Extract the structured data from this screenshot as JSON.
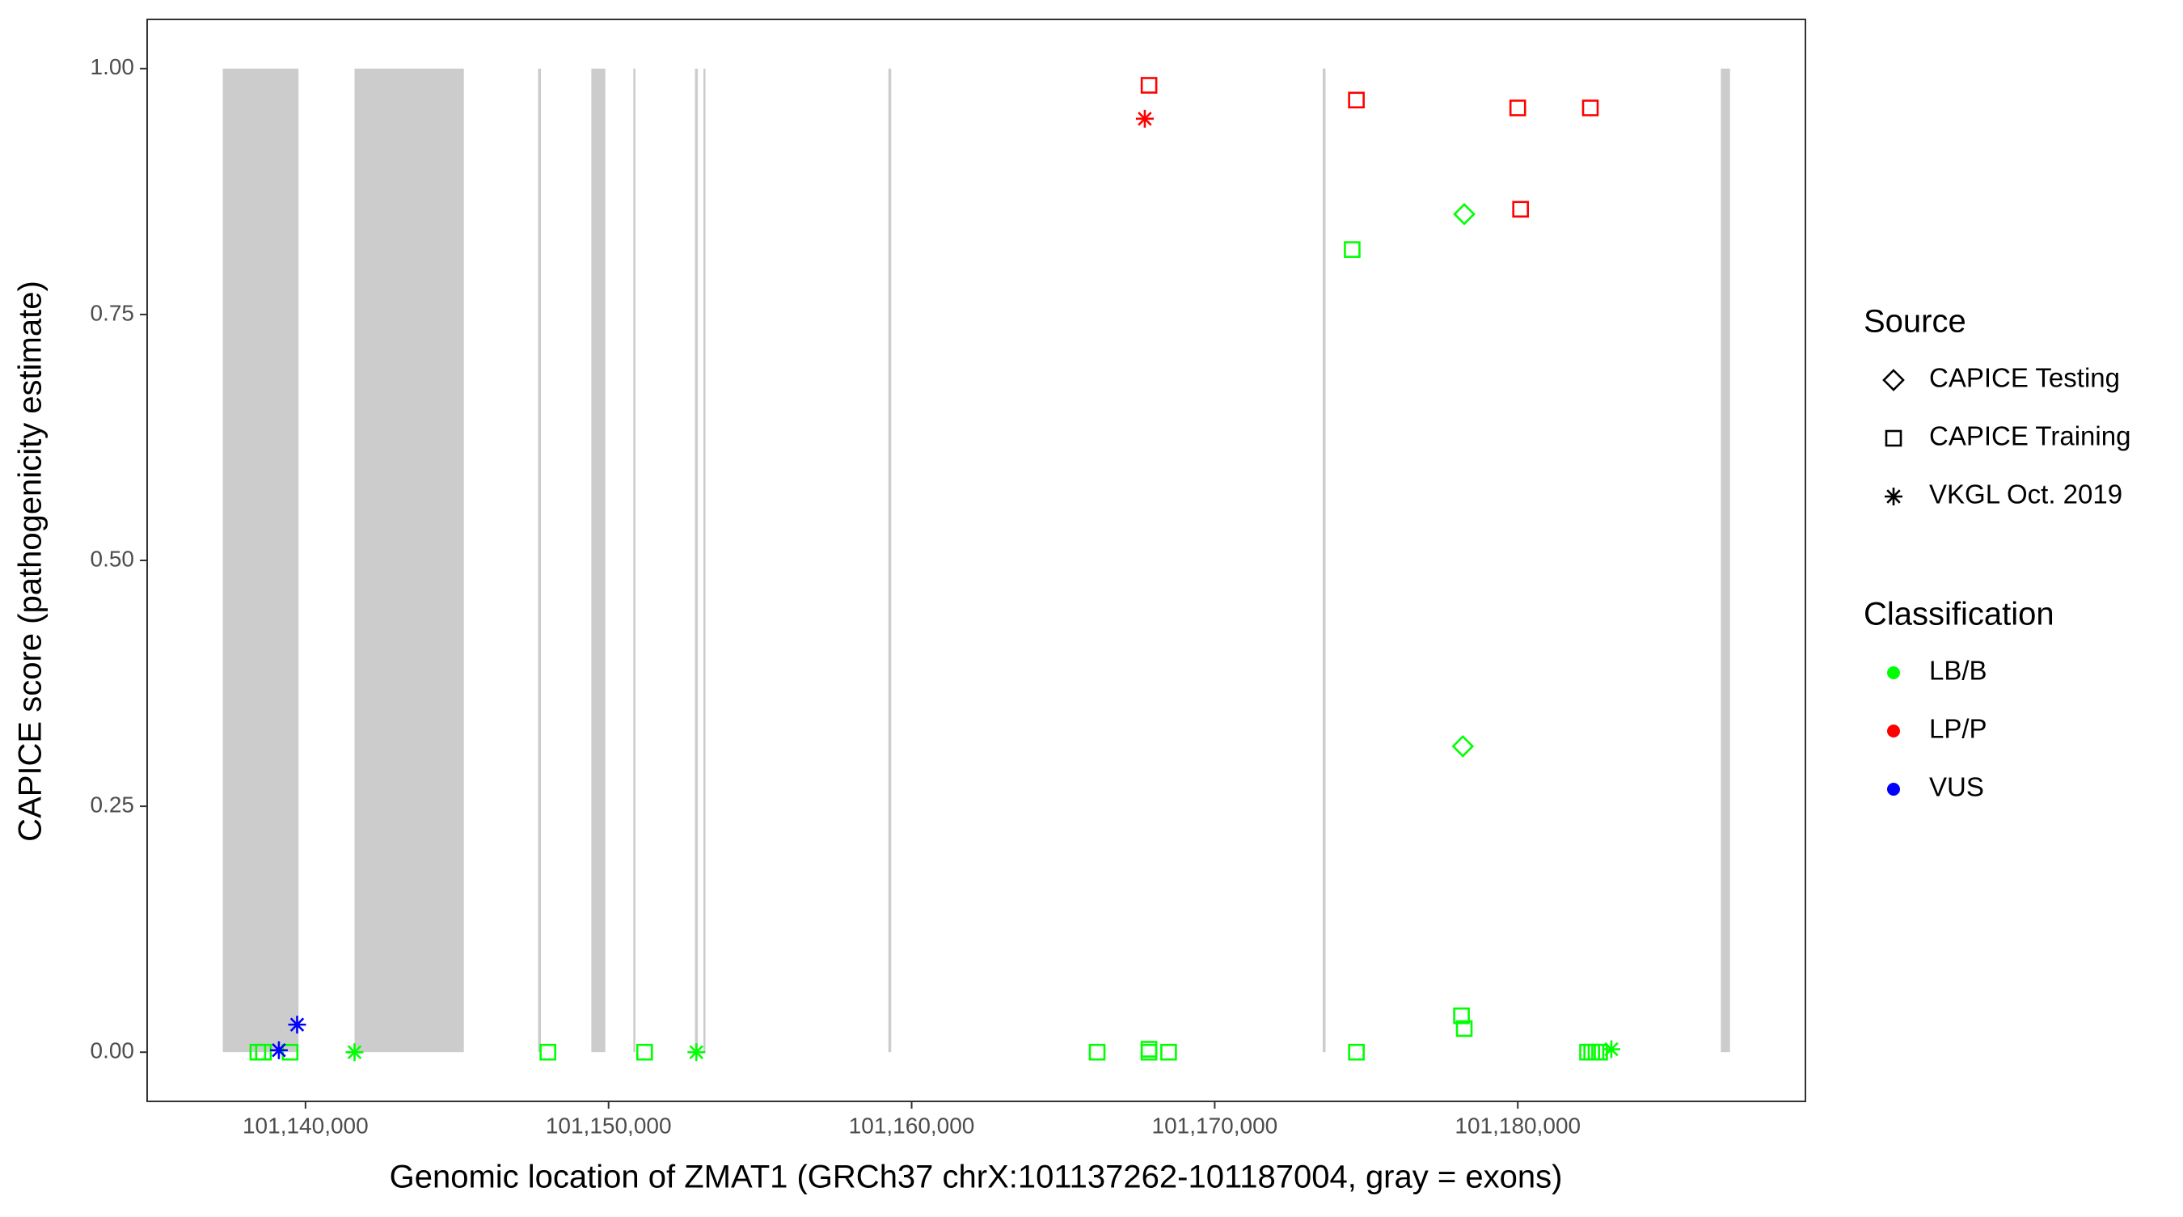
{
  "chart_data": {
    "type": "scatter",
    "xlabel": "Genomic location of ZMAT1 (GRCh37 chrX:101137262-101187004, gray = exons)",
    "ylabel": "CAPICE score (pathogenicity estimate)",
    "xlim": [
      101134775,
      101189491
    ],
    "ylim": [
      -0.05,
      1.05
    ],
    "xticks": [
      {
        "value": 101140000,
        "label": "101,140,000"
      },
      {
        "value": 101150000,
        "label": "101,150,000"
      },
      {
        "value": 101160000,
        "label": "101,160,000"
      },
      {
        "value": 101170000,
        "label": "101,170,000"
      },
      {
        "value": 101180000,
        "label": "101,180,000"
      }
    ],
    "yticks": [
      {
        "value": 0,
        "label": "0.00"
      },
      {
        "value": 0.25,
        "label": "0.25"
      },
      {
        "value": 0.5,
        "label": "0.50"
      },
      {
        "value": 0.75,
        "label": "0.75"
      },
      {
        "value": 1,
        "label": "1.00"
      }
    ],
    "exon_color": "#cccccc",
    "exons": [
      {
        "start": 101137272,
        "end": 101139769
      },
      {
        "start": 101141618,
        "end": 101145224
      },
      {
        "start": 101147675,
        "end": 101147767
      },
      {
        "start": 101149431,
        "end": 101149893
      },
      {
        "start": 101150818,
        "end": 101150864
      },
      {
        "start": 101152852,
        "end": 101152945
      },
      {
        "start": 101153130,
        "end": 101153176
      },
      {
        "start": 101159233,
        "end": 101159325
      },
      {
        "start": 101173564,
        "end": 101173657
      },
      {
        "start": 101186700,
        "end": 101187004
      }
    ],
    "source_title": "Source",
    "sources": [
      {
        "name": "CAPICE Testing",
        "shape": "diamond"
      },
      {
        "name": "CAPICE Training",
        "shape": "square"
      },
      {
        "name": "VKGL Oct. 2019",
        "shape": "asterisk"
      }
    ],
    "classification_title": "Classification",
    "series": [
      {
        "name": "LB/B",
        "color": "#00ff00",
        "x": [
          101138428,
          101138613,
          101139491,
          101141618,
          101147998,
          101151188,
          101152898,
          101166121,
          101167832,
          101167832,
          101168479,
          101174536,
          101174675,
          101178234,
          101178188,
          101178142,
          101178234,
          101182302,
          101182440,
          101182580,
          101182700,
          101183088
        ],
        "values": [
          0,
          0,
          0,
          0,
          0,
          0,
          0,
          0,
          0.003,
          0,
          0,
          0.816,
          0,
          0.852,
          0.311,
          0.037,
          0.024,
          0,
          0,
          0,
          0,
          0.003
        ],
        "source": [
          1,
          1,
          1,
          2,
          1,
          1,
          2,
          1,
          1,
          1,
          1,
          1,
          1,
          0,
          0,
          1,
          1,
          1,
          1,
          1,
          1,
          2
        ]
      },
      {
        "name": "LP/P",
        "color": "#ff0000",
        "x": [
          101167832,
          101167693,
          101174675,
          101179999,
          101182395,
          101180092
        ],
        "values": [
          0.983,
          0.949,
          0.968,
          0.96,
          0.96,
          0.857
        ],
        "source": [
          1,
          2,
          1,
          1,
          1,
          1
        ]
      },
      {
        "name": "VUS",
        "color": "#0000ff",
        "x": [
          101139122,
          101139723
        ],
        "values": [
          0.002,
          0.028
        ],
        "source": [
          2,
          2
        ]
      }
    ]
  }
}
